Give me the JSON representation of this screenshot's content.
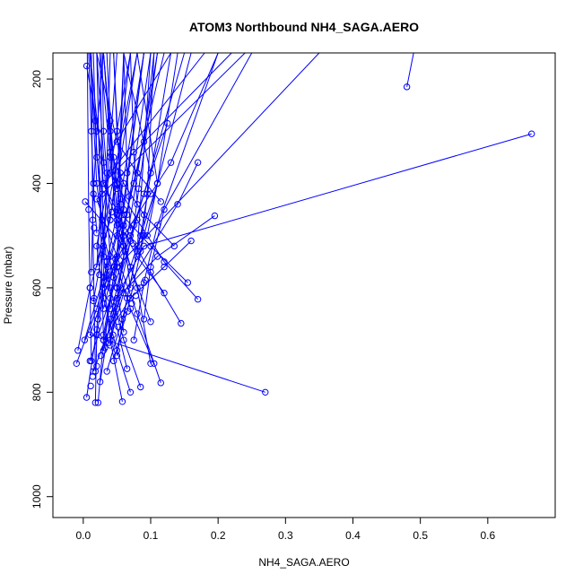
{
  "chart_data": {
    "type": "line",
    "title": "ATOM3 Northbound NH4_SAGA.AERO",
    "xlabel": "NH4_SAGA.AERO",
    "ylabel": "Pressure (mbar)",
    "xlim": [
      -0.045,
      0.7
    ],
    "ylim": [
      1040,
      150
    ],
    "y_reversed": true,
    "grid": false,
    "legend": "none",
    "colors": {
      "series": "#0000ff",
      "axes": "#000000"
    },
    "x_ticks": [
      0.0,
      0.1,
      0.2,
      0.3,
      0.4,
      0.5,
      0.6
    ],
    "x_tick_labels": [
      "0.0",
      "0.1",
      "0.2",
      "0.3",
      "0.4",
      "0.5",
      "0.6"
    ],
    "y_ticks": [
      200,
      400,
      600,
      800,
      1000
    ],
    "y_tick_labels": [
      "200",
      "400",
      "600",
      "800",
      "1000"
    ],
    "series": [
      {
        "x": [
          0.48,
          0.49
        ],
        "y": [
          215,
          150
        ]
      },
      {
        "x": [
          0.665,
          0.09,
          0.04
        ],
        "y": [
          305,
          520,
          640
        ]
      },
      {
        "x": [
          0.27,
          0.01,
          0.045,
          0.12
        ],
        "y": [
          800,
          690,
          560,
          150
        ]
      },
      {
        "x": [
          0.005,
          0.03,
          0.02,
          0.08
        ],
        "y": [
          175,
          360,
          560,
          150
        ]
      },
      {
        "x": [
          0.003,
          0.06,
          0.03
        ],
        "y": [
          435,
          520,
          600
        ]
      },
      {
        "x": [
          0.17,
          0.14,
          0.06,
          0.04,
          0.11
        ],
        "y": [
          360,
          440,
          610,
          700,
          150
        ]
      },
      {
        "x": [
          0.195,
          0.11,
          0.05,
          0.03,
          0.09
        ],
        "y": [
          462,
          540,
          620,
          720,
          150
        ]
      },
      {
        "x": [
          0.125,
          0.09,
          0.07,
          0.05,
          0.15
        ],
        "y": [
          285,
          420,
          510,
          600,
          150
        ]
      },
      {
        "x": [
          0.17,
          0.12,
          0.08,
          0.04,
          0.18
        ],
        "y": [
          622,
          550,
          470,
          380,
          150
        ]
      },
      {
        "x": [
          0.145,
          0.1,
          0.06,
          0.03,
          0.22
        ],
        "y": [
          668,
          570,
          480,
          400,
          150
        ]
      },
      {
        "x": [
          0.115,
          0.08,
          0.05,
          0.02,
          0.24
        ],
        "y": [
          782,
          650,
          540,
          430,
          150
        ]
      },
      {
        "x": [
          0.105,
          0.07,
          0.05,
          0.35
        ],
        "y": [
          745,
          640,
          560,
          150
        ]
      },
      {
        "x": [
          0.085,
          0.06,
          0.04,
          0.03,
          0.05
        ],
        "y": [
          790,
          700,
          600,
          500,
          150
        ]
      },
      {
        "x": [
          0.07,
          0.05,
          0.03,
          0.02,
          0.07
        ],
        "y": [
          800,
          720,
          620,
          520,
          150
        ]
      },
      {
        "x": [
          0.058,
          0.04,
          0.03,
          0.04
        ],
        "y": [
          818,
          700,
          580,
          150
        ]
      },
      {
        "x": [
          0.022,
          0.03,
          0.05,
          0.06
        ],
        "y": [
          820,
          700,
          560,
          150
        ]
      },
      {
        "x": [
          0.018,
          0.02,
          0.04,
          0.02
        ],
        "y": [
          820,
          690,
          540,
          150
        ]
      },
      {
        "x": [
          0.005,
          0.02,
          0.03,
          0.01
        ],
        "y": [
          810,
          680,
          520,
          150
        ]
      },
      {
        "x": [
          -0.01,
          0.02,
          0.05,
          0.03
        ],
        "y": [
          745,
          640,
          500,
          150
        ]
      },
      {
        "x": [
          -0.008,
          0.01,
          0.04,
          0.07
        ],
        "y": [
          720,
          600,
          470,
          150
        ]
      },
      {
        "x": [
          0.002,
          0.03,
          0.06,
          0.09
        ],
        "y": [
          700,
          580,
          450,
          150
        ]
      },
      {
        "x": [
          0.01,
          0.04,
          0.07,
          0.1,
          0.06
        ],
        "y": [
          740,
          620,
          500,
          380,
          150
        ]
      },
      {
        "x": [
          0.015,
          0.05,
          0.08,
          0.11,
          0.08
        ],
        "y": [
          760,
          640,
          520,
          400,
          150
        ]
      },
      {
        "x": [
          0.012,
          0.015,
          0.02,
          0.03
        ],
        "y": [
          570,
          420,
          300,
          150
        ]
      },
      {
        "x": [
          0.03,
          0.06,
          0.1,
          0.13,
          0.2
        ],
        "y": [
          600,
          500,
          420,
          360,
          150
        ]
      },
      {
        "x": [
          0.16,
          0.12,
          0.07,
          0.03,
          0.02
        ],
        "y": [
          510,
          560,
          620,
          700,
          150
        ]
      },
      {
        "x": [
          0.155,
          0.1,
          0.05,
          0.03
        ],
        "y": [
          590,
          520,
          450,
          150
        ]
      },
      {
        "x": [
          0.12,
          0.08,
          0.05,
          0.03,
          0.01
        ],
        "y": [
          610,
          540,
          470,
          400,
          150
        ]
      },
      {
        "x": [
          0.135,
          0.09,
          0.06,
          0.04,
          0.13
        ],
        "y": [
          520,
          460,
          400,
          340,
          150
        ]
      },
      {
        "x": [
          0.115,
          0.08,
          0.05,
          0.02
        ],
        "y": [
          435,
          380,
          320,
          150
        ]
      },
      {
        "x": [
          0.1,
          0.07,
          0.05,
          0.06
        ],
        "y": [
          665,
          560,
          460,
          150
        ]
      },
      {
        "x": [
          0.065,
          0.045,
          0.03,
          0.025
        ],
        "y": [
          755,
          650,
          540,
          150
        ]
      },
      {
        "x": [
          0.025,
          0.04,
          0.06,
          0.045
        ],
        "y": [
          780,
          660,
          540,
          150
        ]
      },
      {
        "x": [
          0.035,
          0.06,
          0.08,
          0.1
        ],
        "y": [
          760,
          650,
          530,
          150
        ]
      },
      {
        "x": [
          0.045,
          0.07,
          0.09,
          0.16
        ],
        "y": [
          740,
          620,
          500,
          150
        ]
      },
      {
        "x": [
          0.075,
          0.09,
          0.11,
          0.2
        ],
        "y": [
          700,
          590,
          480,
          150
        ]
      },
      {
        "x": [
          0.09,
          0.1,
          0.12,
          0.25
        ],
        "y": [
          660,
          560,
          450,
          150
        ]
      },
      {
        "x": [
          0.02,
          0.015,
          0.012,
          0.008
        ],
        "y": [
          495,
          400,
          300,
          150
        ]
      },
      {
        "x": [
          0.028,
          0.02,
          0.018,
          0.015
        ],
        "y": [
          420,
          350,
          280,
          150
        ]
      },
      {
        "x": [
          0.04,
          0.035,
          0.03,
          0.028
        ],
        "y": [
          470,
          380,
          300,
          150
        ]
      },
      {
        "x": [
          0.05,
          0.045,
          0.04,
          0.035
        ],
        "y": [
          410,
          350,
          280,
          150
        ]
      },
      {
        "x": [
          0.06,
          0.055,
          0.05,
          0.045
        ],
        "y": [
          460,
          380,
          300,
          150
        ]
      },
      {
        "x": [
          0.07,
          0.065,
          0.06
        ],
        "y": [
          490,
          380,
          150
        ]
      },
      {
        "x": [
          0.08,
          0.075,
          0.07
        ],
        "y": [
          440,
          340,
          150
        ]
      },
      {
        "x": [
          0.085,
          0.095,
          0.105
        ],
        "y": [
          530,
          420,
          150
        ]
      },
      {
        "x": [
          0.095,
          0.11,
          0.14
        ],
        "y": [
          500,
          400,
          150
        ]
      },
      {
        "x": [
          0.015,
          0.03,
          0.05,
          0.08
        ],
        "y": [
          625,
          520,
          400,
          150
        ]
      },
      {
        "x": [
          0.022,
          0.035,
          0.055,
          0.09
        ],
        "y": [
          660,
          550,
          430,
          150
        ]
      },
      {
        "x": [
          0.03,
          0.045,
          0.065,
          0.1
        ],
        "y": [
          690,
          580,
          460,
          150
        ]
      },
      {
        "x": [
          0.04,
          0.055,
          0.075,
          0.11
        ],
        "y": [
          710,
          600,
          480,
          150
        ]
      },
      {
        "x": [
          0.05,
          0.065,
          0.085,
          0.13
        ],
        "y": [
          730,
          620,
          500,
          150
        ]
      },
      {
        "x": [
          0.06,
          0.05,
          0.03,
          0.02,
          0.01
        ],
        "y": [
          685,
          600,
          500,
          400,
          150
        ]
      },
      {
        "x": [
          0.012,
          0.01,
          0.008,
          0.006
        ],
        "y": [
          740,
          600,
          450,
          150
        ]
      },
      {
        "x": [
          0.018,
          0.016,
          0.014,
          0.012
        ],
        "y": [
          760,
          620,
          470,
          150
        ]
      },
      {
        "x": [
          0.1,
          0.08,
          0.05,
          0.04,
          0.025
        ],
        "y": [
          745,
          600,
          480,
          350,
          150
        ]
      },
      {
        "x": [
          0.03,
          0.045,
          0.06,
          0.075,
          0.09,
          0.105
        ],
        "y": [
          640,
          560,
          480,
          400,
          320,
          150
        ]
      },
      {
        "x": [
          0.07,
          0.06,
          0.05,
          0.04,
          0.03
        ],
        "y": [
          600,
          500,
          400,
          300,
          150
        ]
      }
    ],
    "marker_only": {
      "x": [
        0.011,
        0.014,
        0.02,
        0.026,
        0.032,
        0.038,
        0.044,
        0.052,
        0.058,
        0.066,
        0.072,
        0.078,
        0.085,
        0.092,
        0.024,
        0.036,
        0.048,
        0.062,
        0.074,
        0.088,
        0.016,
        0.028,
        0.042,
        0.056,
        0.068,
        0.082
      ],
      "y": [
        788,
        770,
        750,
        730,
        715,
        705,
        690,
        675,
        660,
        645,
        630,
        615,
        600,
        585,
        575,
        560,
        545,
        530,
        515,
        500,
        485,
        470,
        455,
        440,
        425,
        410
      ]
    }
  }
}
